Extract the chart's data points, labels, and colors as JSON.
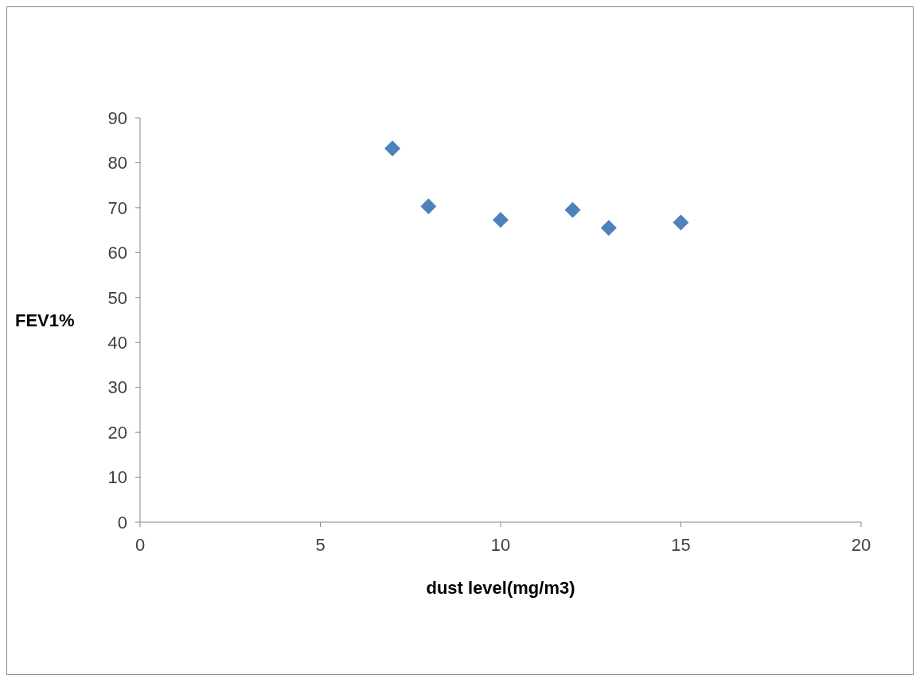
{
  "chart_data": {
    "type": "scatter",
    "xlabel": "dust level(mg/m3)",
    "ylabel": "FEV1%",
    "x": [
      7,
      8,
      10,
      12,
      13,
      15
    ],
    "series": [
      {
        "color": "#4f81bd",
        "values": [
          83.2,
          70.3,
          67.3,
          69.5,
          65.5,
          66.7
        ]
      }
    ],
    "xlim": [
      0,
      20
    ],
    "xticks": [
      0,
      5,
      10,
      15,
      20
    ],
    "ylim": [
      0,
      90
    ],
    "yticks": [
      0,
      10,
      20,
      30,
      40,
      50,
      60,
      70,
      80,
      90
    ],
    "marker": "diamond"
  }
}
